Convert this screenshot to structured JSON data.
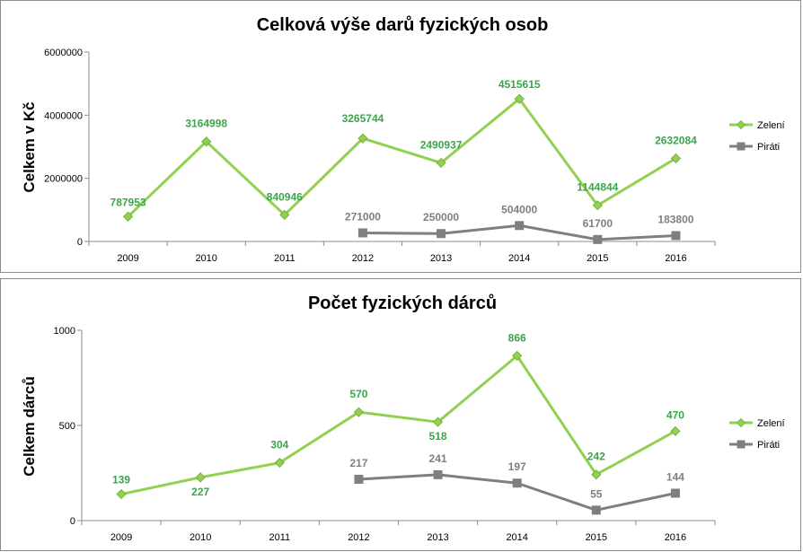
{
  "chart_data": [
    {
      "type": "line",
      "title": "Celková výše darů fyzických osob",
      "xlabel": "",
      "ylabel": "Celkem v Kč",
      "ylim": [
        0,
        6000000
      ],
      "yticks": [
        0,
        2000000,
        4000000,
        6000000
      ],
      "yticklabels": [
        "0",
        "2000000",
        "4000000",
        "6000000"
      ],
      "categories": [
        "2009",
        "2010",
        "2011",
        "2012",
        "2013",
        "2014",
        "2015",
        "2016"
      ],
      "legend_position": "right",
      "grid": false,
      "series": [
        {
          "name": "Zelení",
          "color": "#92d050",
          "marker": "diamond",
          "values": [
            787953,
            3164998,
            840946,
            3265744,
            2490937,
            4515615,
            1144844,
            2632084
          ],
          "labels": [
            "787953",
            "3164998",
            "840946",
            "3265744",
            "2490937",
            "4515615",
            "1144844",
            "2632084"
          ]
        },
        {
          "name": "Piráti",
          "color": "#7f7f7f",
          "marker": "square",
          "values": [
            null,
            null,
            null,
            271000,
            250000,
            504000,
            61700,
            183800
          ],
          "labels": [
            null,
            null,
            null,
            "271000",
            "250000",
            "504000",
            "61700",
            "183800"
          ]
        }
      ]
    },
    {
      "type": "line",
      "title": "Počet fyzických dárců",
      "xlabel": "",
      "ylabel": "Celkem dárců",
      "ylim": [
        0,
        1000
      ],
      "yticks": [
        0,
        500,
        1000
      ],
      "yticklabels": [
        "0",
        "500",
        "1000"
      ],
      "categories": [
        "2009",
        "2010",
        "2011",
        "2012",
        "2013",
        "2014",
        "2015",
        "2016"
      ],
      "legend_position": "right",
      "grid": false,
      "series": [
        {
          "name": "Zelení",
          "color": "#92d050",
          "marker": "diamond",
          "values": [
            139,
            227,
            304,
            570,
            518,
            866,
            242,
            470
          ],
          "labels": [
            "139",
            "227",
            "304",
            "570",
            "518",
            "866",
            "242",
            "470"
          ]
        },
        {
          "name": "Piráti",
          "color": "#7f7f7f",
          "marker": "square",
          "values": [
            null,
            null,
            null,
            217,
            241,
            197,
            55,
            144
          ],
          "labels": [
            null,
            null,
            null,
            "217",
            "241",
            "197",
            "55",
            "144"
          ]
        }
      ]
    }
  ],
  "label_colors": {
    "Zelení": "#3aa64a",
    "Piráti": "#7f7f7f"
  }
}
